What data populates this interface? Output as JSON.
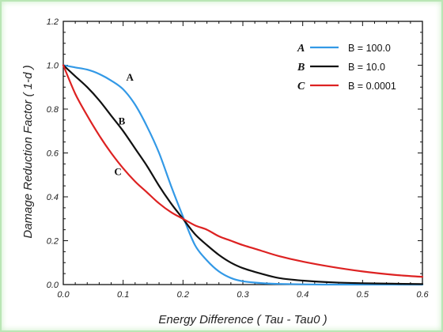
{
  "chart_data": {
    "type": "line",
    "title": "",
    "xlabel": "Energy Difference ( Tau - Tau0 )",
    "ylabel": "Damage Reduction Factor ( 1-d )",
    "xlim": [
      0,
      0.6
    ],
    "ylim": [
      0,
      1.2
    ],
    "xticks": [
      0,
      0.1,
      0.2,
      0.3,
      0.4,
      0.5,
      0.6
    ],
    "xtick_labels": [
      "0.0",
      "0.1",
      "0.2",
      "0.3",
      "0.4",
      "0.5",
      "0.6"
    ],
    "yticks": [
      0,
      0.2,
      0.4,
      0.6,
      0.8,
      1.0,
      1.2
    ],
    "ytick_labels": [
      "0.0",
      "0.2",
      "0.4",
      "0.6",
      "0.8",
      "1.0",
      "1.2"
    ],
    "grid": false,
    "legend_position": "top-right",
    "series": [
      {
        "name": "B = 100.0",
        "letter": "A",
        "color": "#3399e6",
        "x": [
          0,
          0.02,
          0.04,
          0.06,
          0.08,
          0.1,
          0.12,
          0.14,
          0.16,
          0.18,
          0.2,
          0.22,
          0.24,
          0.26,
          0.28,
          0.3,
          0.33,
          0.36,
          0.4,
          0.45,
          0.5,
          0.55,
          0.6
        ],
        "y": [
          1.0,
          0.99,
          0.98,
          0.96,
          0.93,
          0.89,
          0.82,
          0.72,
          0.6,
          0.45,
          0.31,
          0.18,
          0.11,
          0.06,
          0.03,
          0.015,
          0.007,
          0.003,
          0.001,
          0.0,
          0.0,
          0.0,
          0.0
        ]
      },
      {
        "name": "B = 10.0",
        "letter": "B",
        "color": "#111111",
        "x": [
          0,
          0.02,
          0.04,
          0.06,
          0.08,
          0.1,
          0.12,
          0.14,
          0.16,
          0.18,
          0.2,
          0.22,
          0.24,
          0.26,
          0.28,
          0.3,
          0.33,
          0.36,
          0.4,
          0.45,
          0.5,
          0.55,
          0.6
        ],
        "y": [
          1.0,
          0.95,
          0.9,
          0.84,
          0.77,
          0.7,
          0.62,
          0.54,
          0.45,
          0.37,
          0.3,
          0.23,
          0.18,
          0.135,
          0.1,
          0.075,
          0.05,
          0.03,
          0.018,
          0.01,
          0.006,
          0.004,
          0.002
        ]
      },
      {
        "name": "B = 0.0001",
        "letter": "C",
        "color": "#dd2222",
        "x": [
          0,
          0.02,
          0.04,
          0.06,
          0.08,
          0.1,
          0.12,
          0.14,
          0.16,
          0.18,
          0.2,
          0.22,
          0.24,
          0.26,
          0.28,
          0.3,
          0.33,
          0.36,
          0.4,
          0.45,
          0.5,
          0.55,
          0.6
        ],
        "y": [
          1.0,
          0.87,
          0.77,
          0.68,
          0.6,
          0.53,
          0.47,
          0.42,
          0.37,
          0.33,
          0.3,
          0.27,
          0.25,
          0.22,
          0.2,
          0.18,
          0.155,
          0.13,
          0.105,
          0.08,
          0.06,
          0.045,
          0.035
        ]
      }
    ],
    "annotations": [
      {
        "text": "A",
        "x": 0.105,
        "y": 0.93
      },
      {
        "text": "B",
        "x": 0.092,
        "y": 0.73
      },
      {
        "text": "C",
        "x": 0.085,
        "y": 0.5
      }
    ]
  }
}
